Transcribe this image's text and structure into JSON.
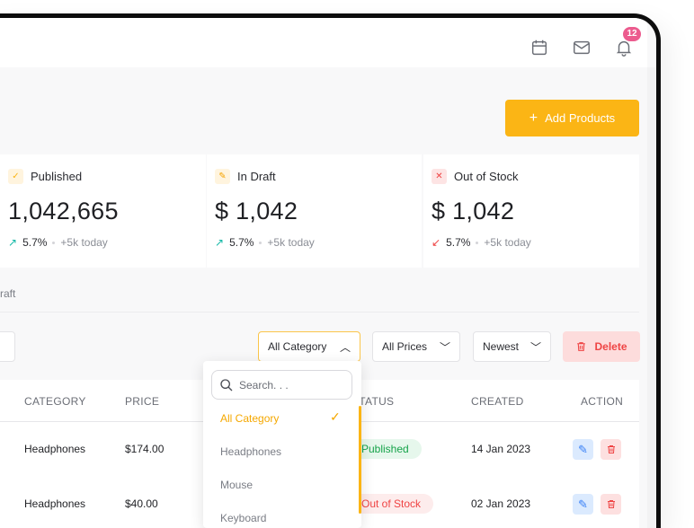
{
  "header": {
    "icons": [
      "calendar-icon",
      "mail-icon",
      "bell-icon"
    ],
    "notification_count": "12"
  },
  "toolbar": {
    "add_label": "Add Products",
    "add_icon": "plus-icon"
  },
  "stats": [
    {
      "label": "Published",
      "value": "1,042,665",
      "change": "5.7%",
      "direction": "up",
      "today": "+5k today",
      "icon": "check-icon"
    },
    {
      "label": "In Draft",
      "value": "$ 1,042",
      "change": "5.7%",
      "direction": "up",
      "today": "+5k today",
      "icon": "pencil-icon"
    },
    {
      "label": "Out of Stock",
      "value": "$ 1,042",
      "change": "5.7%",
      "direction": "down",
      "today": "+5k today",
      "icon": "x-icon"
    }
  ],
  "tabs": {
    "partial": "raft"
  },
  "filters": {
    "category": "All Category",
    "prices": "All Prices",
    "sort": "Newest",
    "delete_label": "Delete"
  },
  "dropdown": {
    "search_placeholder": "Search. . .",
    "options": [
      "All Category",
      "Headphones",
      "Mouse",
      "Keyboard"
    ],
    "selected": "All Category"
  },
  "table": {
    "columns": [
      "CATEGORY",
      "PRICE",
      "STATUS",
      "CREATED",
      "ACTION"
    ],
    "rows": [
      {
        "category": "Headphones",
        "price": "$174.00",
        "status": "Published",
        "created": "14 Jan 2023"
      },
      {
        "category": "Headphones",
        "price": "$40.00",
        "status": "Out of Stock",
        "created": "02 Jan 2023"
      }
    ]
  },
  "colors": {
    "accent": "#fbb515",
    "danger": "#ef4444",
    "success": "#16a34a",
    "badge": "#ec5b8e",
    "edit": "#3b82f6"
  }
}
